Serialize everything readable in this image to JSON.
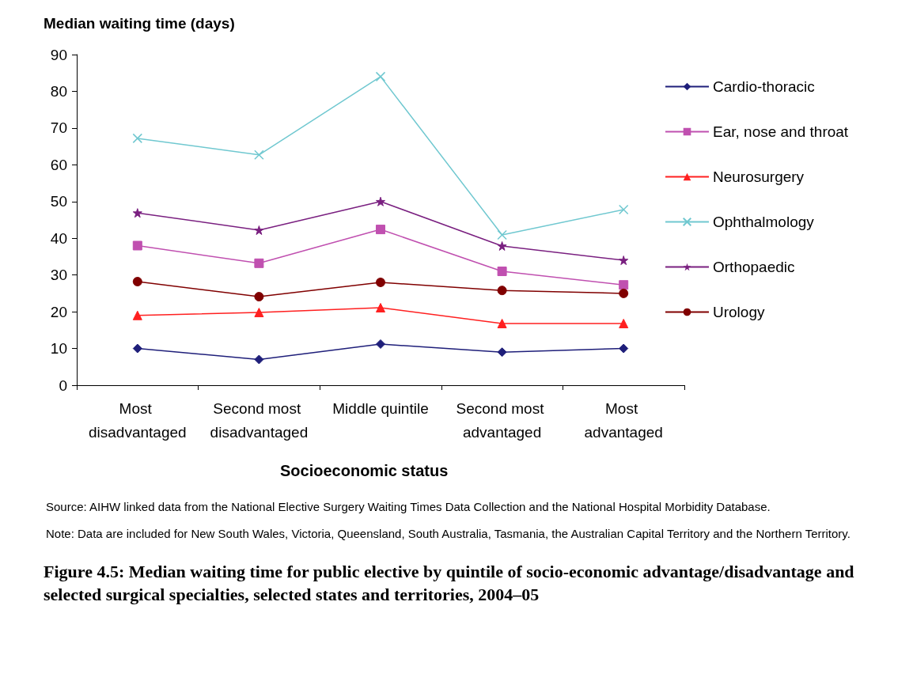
{
  "chart_data": {
    "type": "line",
    "title": "Figure 4.5: Median waiting time for public elective by quintile of socio-economic advantage/disadvantage and selected surgical specialties, selected states and territories, 2004–05",
    "ylabel": "Median waiting time (days)",
    "xlabel": "Socioeconomic status",
    "annotations": [
      "Source: AIHW linked data from the National Elective Surgery Waiting Times Data Collection and the National Hospital Morbidity Database.",
      "Note: Data are included for New South Wales, Victoria, Queensland, South Australia, Tasmania, the Australian Capital Territory and the Northern Territory."
    ],
    "categories": [
      "Most disadvantaged",
      "Second most disadvantaged",
      "Middle quintile",
      "Second most advantaged",
      "Most advantaged"
    ],
    "ylim": [
      0,
      90
    ],
    "yticks": [
      0,
      10,
      20,
      30,
      40,
      50,
      60,
      70,
      80,
      90
    ],
    "grid": false,
    "legend": "right",
    "line_style": "solid",
    "series": [
      {
        "name": "Cardio-thoracic",
        "color": "#1f1f7a",
        "marker": "diamond",
        "values": [
          10,
          7,
          11.2,
          9,
          10
        ]
      },
      {
        "name": "Ear, nose and throat",
        "color": "#c050b0",
        "marker": "square",
        "values": [
          38,
          33.2,
          42.4,
          31,
          27.3
        ]
      },
      {
        "name": "Neurosurgery",
        "color": "#ff2020",
        "marker": "triangle",
        "values": [
          19,
          19.8,
          21.1,
          16.8,
          16.8
        ]
      },
      {
        "name": "Ophthalmology",
        "color": "#70c8d0",
        "marker": "cross",
        "values": [
          67.2,
          62.7,
          84,
          40.9,
          47.8
        ]
      },
      {
        "name": "Orthopaedic",
        "color": "#7a2080",
        "marker": "star",
        "values": [
          46.9,
          42.2,
          50,
          37.9,
          34
        ]
      },
      {
        "name": "Urology",
        "color": "#800000",
        "marker": "circle",
        "values": [
          28.2,
          24.1,
          28,
          25.8,
          25
        ]
      }
    ]
  }
}
